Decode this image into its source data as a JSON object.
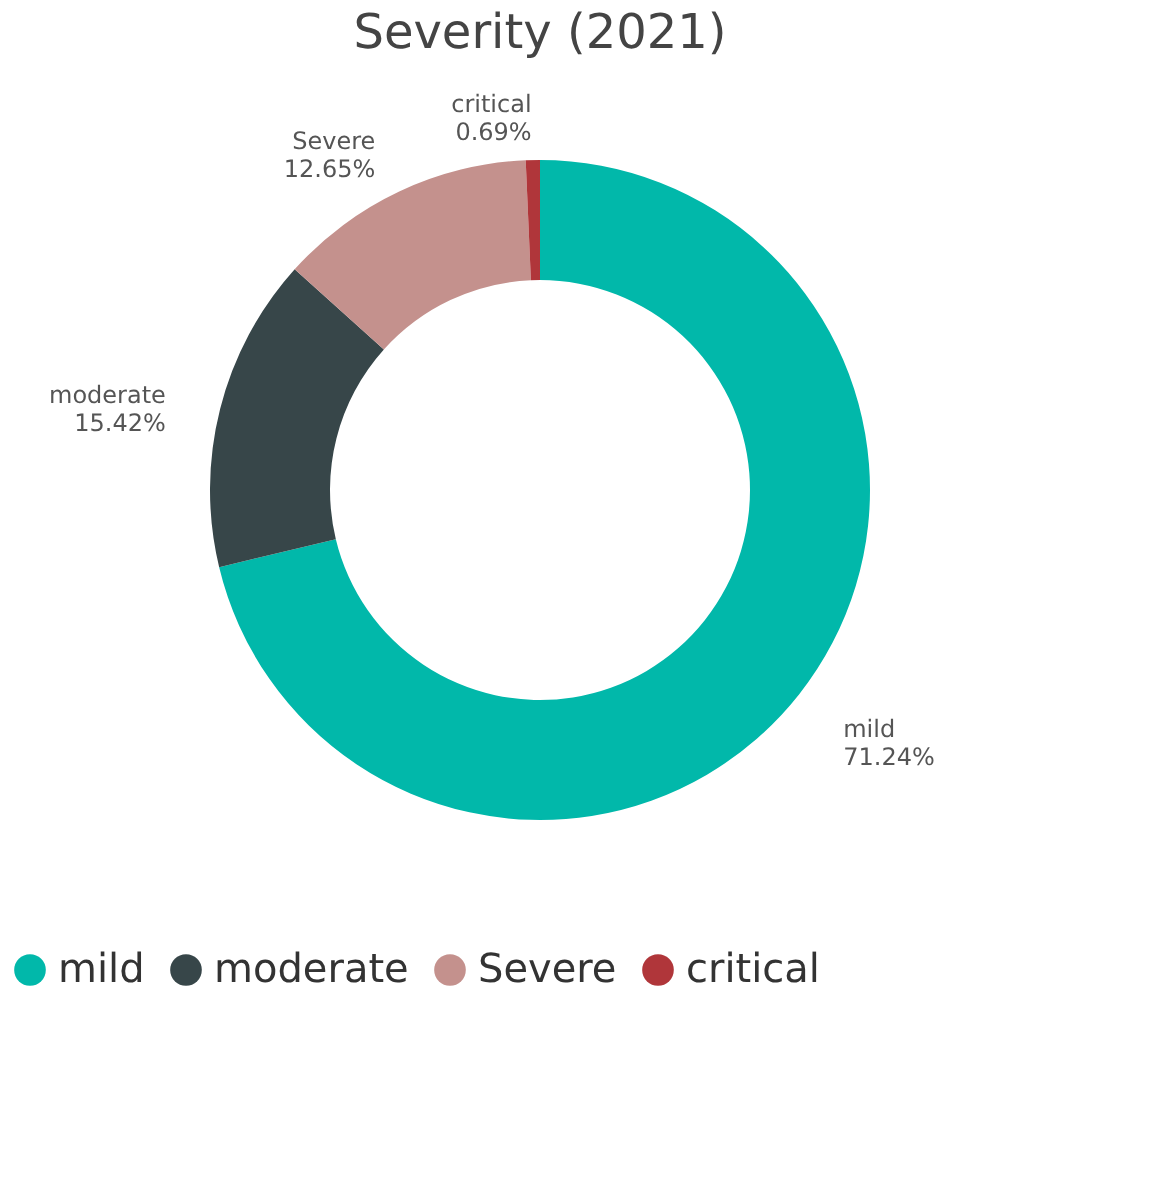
{
  "chart_data": {
    "type": "donut",
    "title": "Severity (2021)",
    "categories": [
      "mild",
      "moderate",
      "Severe",
      "critical"
    ],
    "values": [
      71.24,
      15.42,
      12.65,
      0.69
    ],
    "colors": [
      "#01b8aa",
      "#374649",
      "#c4918d",
      "#b0363a"
    ],
    "value_labels": [
      "71.24%",
      "15.42%",
      "12.65%",
      "0.69%"
    ],
    "legend": "bottom"
  }
}
